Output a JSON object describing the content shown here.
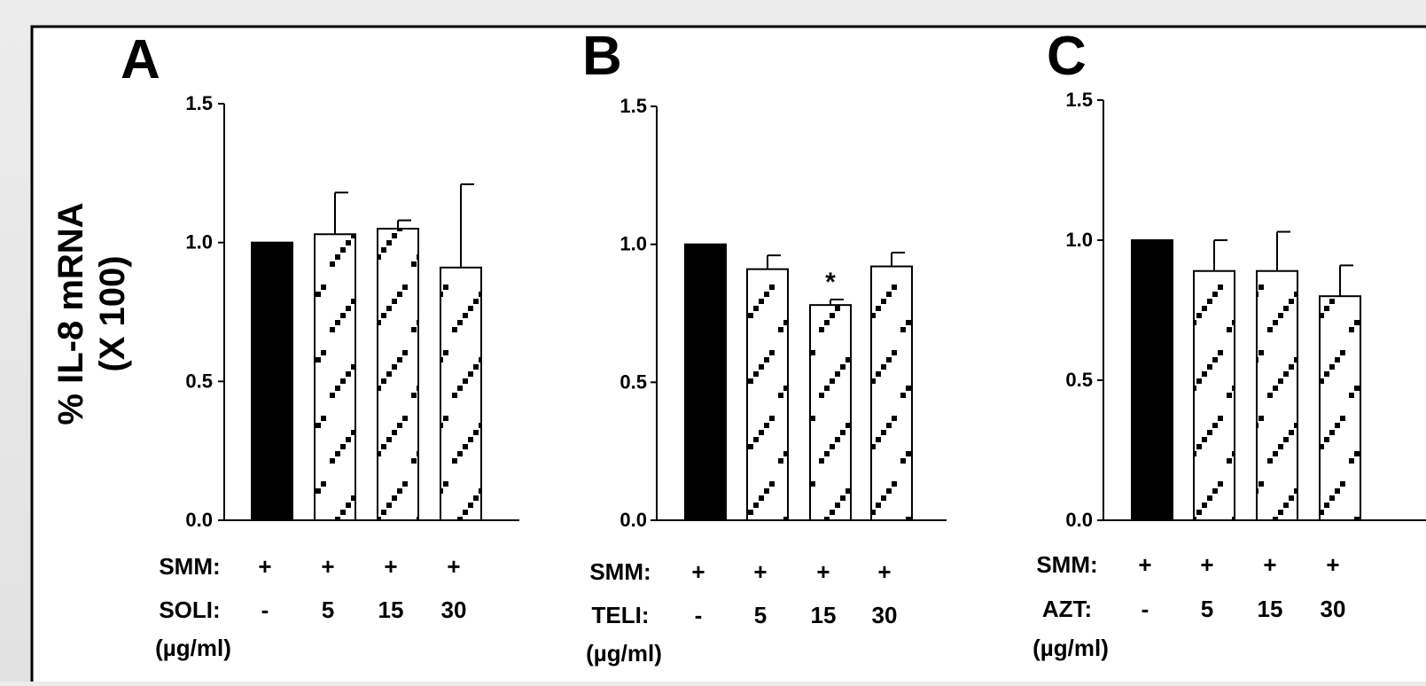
{
  "figure": {
    "ylabel_line1": "% IL-8 mRNA",
    "ylabel_line2": "(X 100)"
  },
  "chart_data": [
    {
      "type": "bar",
      "panel": "A",
      "ylim": [
        0,
        1.5
      ],
      "yticks": [
        "0.0",
        "0.5",
        "1.0",
        "1.5"
      ],
      "categories": [
        "-",
        "5",
        "15",
        "30"
      ],
      "values": [
        1.0,
        1.03,
        1.05,
        0.91
      ],
      "errors": [
        0,
        0.15,
        0.03,
        0.3
      ],
      "fills": [
        "solid",
        "hatched",
        "hatched",
        "hatched"
      ],
      "significance": [
        "",
        "",
        "",
        ""
      ],
      "rows": [
        {
          "label": "SMM:",
          "values": [
            "+",
            "+",
            "+",
            "+"
          ]
        },
        {
          "label": "SOLI:",
          "values": [
            "-",
            "5",
            "15",
            "30"
          ]
        }
      ],
      "unit": "(µg/ml)"
    },
    {
      "type": "bar",
      "panel": "B",
      "ylim": [
        0,
        1.5
      ],
      "yticks": [
        "0.0",
        "0.5",
        "1.0",
        "1.5"
      ],
      "categories": [
        "-",
        "5",
        "15",
        "30"
      ],
      "values": [
        1.0,
        0.91,
        0.78,
        0.92
      ],
      "errors": [
        0,
        0.05,
        0.02,
        0.05
      ],
      "fills": [
        "solid",
        "hatched",
        "hatched",
        "hatched"
      ],
      "significance": [
        "",
        "",
        "*",
        ""
      ],
      "rows": [
        {
          "label": "SMM:",
          "values": [
            "+",
            "+",
            "+",
            "+"
          ]
        },
        {
          "label": "TELI:",
          "values": [
            "-",
            "5",
            "15",
            "30"
          ]
        }
      ],
      "unit": "(µg/ml)"
    },
    {
      "type": "bar",
      "panel": "C",
      "ylim": [
        0,
        1.5
      ],
      "yticks": [
        "0.0",
        "0.5",
        "1.0",
        "1.5"
      ],
      "categories": [
        "-",
        "5",
        "15",
        "30"
      ],
      "values": [
        1.0,
        0.89,
        0.89,
        0.8
      ],
      "errors": [
        0,
        0.11,
        0.14,
        0.11
      ],
      "fills": [
        "solid",
        "hatched",
        "hatched",
        "hatched"
      ],
      "significance": [
        "",
        "",
        "",
        ""
      ],
      "rows": [
        {
          "label": "SMM:",
          "values": [
            "+",
            "+",
            "+",
            "+"
          ]
        },
        {
          "label": "AZT:",
          "values": [
            "-",
            "5",
            "15",
            "30"
          ]
        }
      ],
      "unit": "(µg/ml)"
    }
  ]
}
